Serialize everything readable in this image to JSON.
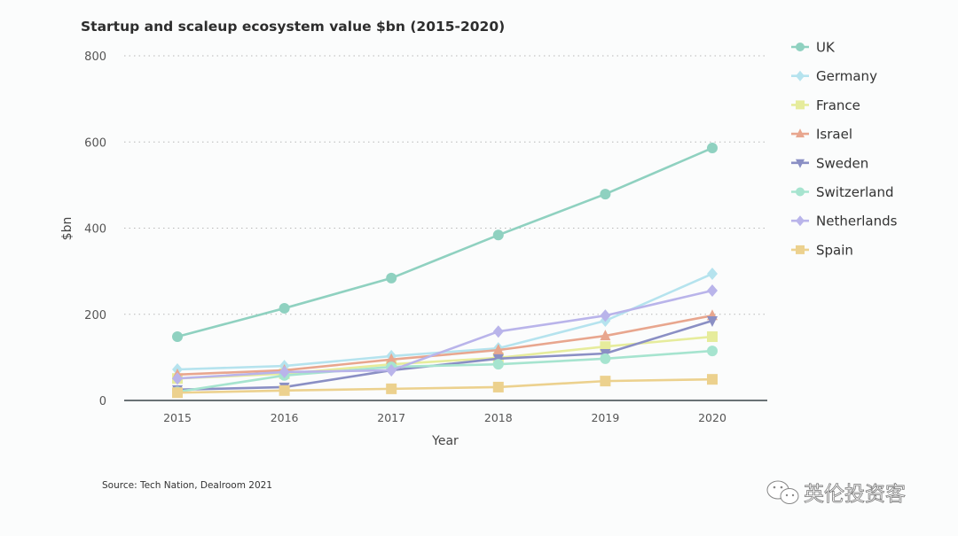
{
  "chart_data": {
    "type": "line",
    "title": "Startup and scaleup ecosystem value $bn (2015-2020)",
    "xlabel": "Year",
    "ylabel": "$bn",
    "x": [
      "2015",
      "2016",
      "2017",
      "2018",
      "2019",
      "2020"
    ],
    "ylim": [
      0,
      800
    ],
    "yticks": [
      "0",
      "200",
      "400",
      "600",
      "800"
    ],
    "grid": "horizontal dotted",
    "legend_position": "right",
    "series": [
      {
        "name": "UK",
        "color": "#8fd1c0",
        "marker": "circle",
        "values": [
          148,
          214,
          284,
          384,
          479,
          586
        ]
      },
      {
        "name": "Germany",
        "color": "#b5e3ee",
        "marker": "diamond",
        "values": [
          72,
          80,
          103,
          121,
          185,
          294
        ]
      },
      {
        "name": "France",
        "color": "#e6ec9c",
        "marker": "square",
        "values": [
          51,
          62,
          84,
          99,
          125,
          148
        ]
      },
      {
        "name": "Israel",
        "color": "#e8a68e",
        "marker": "triangle-up",
        "values": [
          60,
          70,
          95,
          117,
          150,
          197
        ]
      },
      {
        "name": "Sweden",
        "color": "#8a8fc4",
        "marker": "triangle-down",
        "values": [
          25,
          31,
          70,
          97,
          109,
          185
        ]
      },
      {
        "name": "Switzerland",
        "color": "#a6e4cf",
        "marker": "circle",
        "values": [
          20,
          58,
          78,
          84,
          97,
          115
        ]
      },
      {
        "name": "Netherlands",
        "color": "#b9b4ea",
        "marker": "diamond",
        "values": [
          51,
          66,
          70,
          160,
          197,
          255
        ]
      },
      {
        "name": "Spain",
        "color": "#ecd18e",
        "marker": "square",
        "values": [
          18,
          23,
          27,
          31,
          45,
          49
        ]
      }
    ]
  },
  "source": "Source: Tech Nation, Dealroom 2021",
  "watermark": {
    "text": "英伦投资客",
    "icon": "wechat-icon"
  }
}
